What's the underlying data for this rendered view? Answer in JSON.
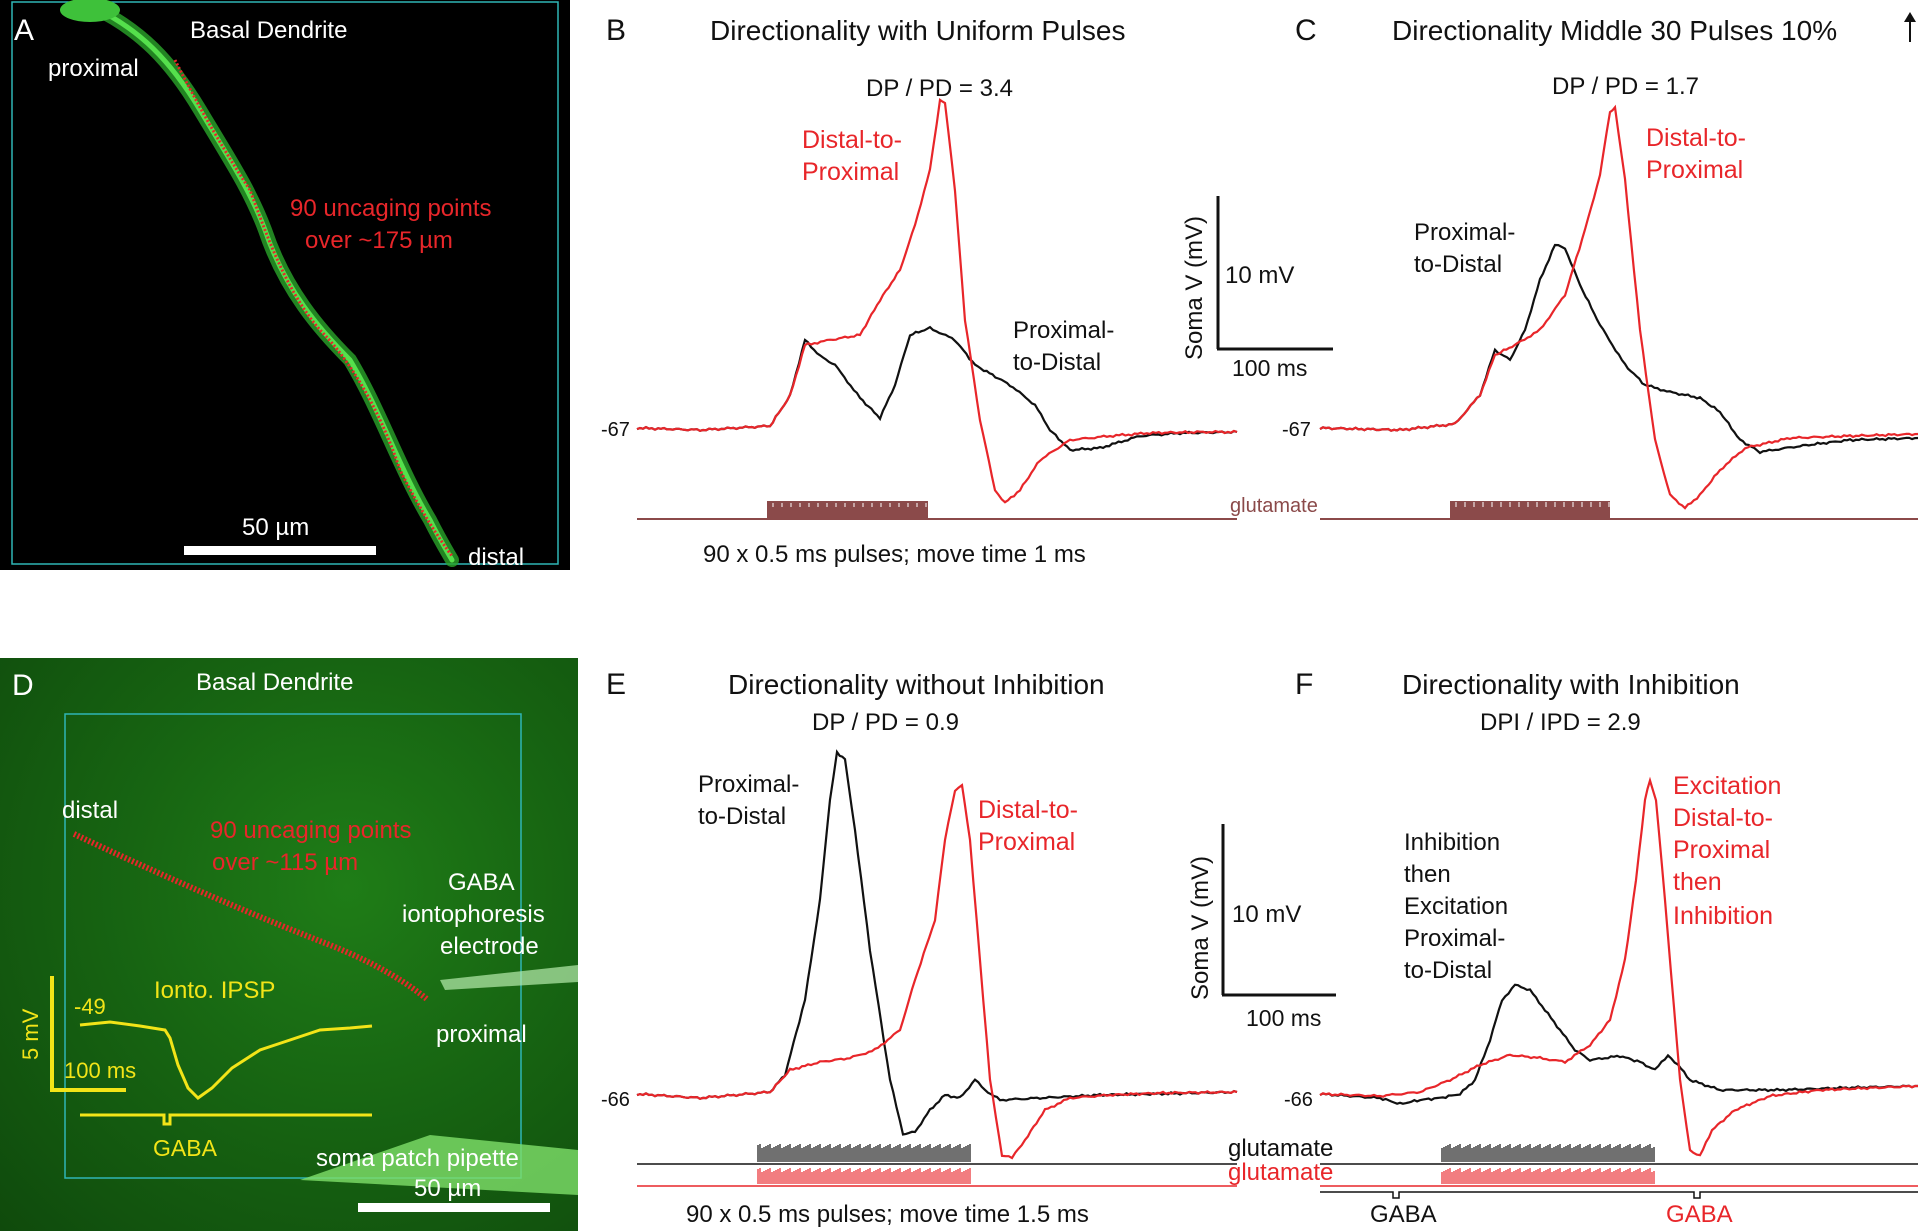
{
  "colors": {
    "red": "#e8262a",
    "black": "#111111",
    "dendrite_green": "#3ec13a",
    "glutamate_brown": "#8b4a4a",
    "yellow": "#f2e418",
    "cyan_box": "#2fb5b5",
    "mic_bg_d": "#176512"
  },
  "panel_a": {
    "letter": "A",
    "title": "Basal Dendrite",
    "proximal": "proximal",
    "distal": "distal",
    "uncaging_line1": "90 uncaging points",
    "uncaging_line2": "over ~175 µm",
    "scalebar": "50 µm"
  },
  "panel_b": {
    "letter": "B",
    "title": "Directionality with Uniform Pulses",
    "ratio": "DP / PD =  3.4",
    "red_label": [
      "Distal-to-",
      "Proximal"
    ],
    "black_label": [
      "Proximal-",
      "to-Distal"
    ],
    "baseline": "-67",
    "footer": "90 x 0.5 ms pulses; move time 1 ms",
    "glutamate": "glutamate"
  },
  "scale_top": {
    "ylabel": "Soma V (mV)",
    "v": "10 mV",
    "t": "100 ms"
  },
  "panel_c": {
    "letter": "C",
    "title": "Directionality Middle 30 Pulses 10%",
    "ratio": "DP / PD = 1.7",
    "red_label": [
      "Distal-to-",
      "Proximal"
    ],
    "black_label": [
      "Proximal-",
      "to-Distal"
    ],
    "baseline": "-67"
  },
  "panel_d": {
    "letter": "D",
    "title": "Basal Dendrite",
    "distal": "distal",
    "proximal": "proximal",
    "uncaging_line1": "90 uncaging points",
    "uncaging_line2": "over ~115 µm",
    "electrode": [
      "GABA",
      "iontophoresis",
      "electrode"
    ],
    "ipsp_label": "Ionto. IPSP",
    "ipsp_baseline": "-49",
    "scale_v": "5 mV",
    "scale_t": "100 ms",
    "gaba": "GABA",
    "pipette": "soma patch pipette",
    "scalebar": "50 µm"
  },
  "panel_e": {
    "letter": "E",
    "title": "Directionality without Inhibition",
    "ratio": "DP / PD = 0.9",
    "black_label": [
      "Proximal-",
      "to-Distal"
    ],
    "red_label": [
      "Distal-to-",
      "Proximal"
    ],
    "baseline": "-66",
    "footer": "90 x 0.5 ms pulses; move time 1.5 ms",
    "glutamate_black": "glutamate",
    "glutamate_red": "glutamate"
  },
  "scale_bottom": {
    "ylabel": "Soma V (mV)",
    "v": "10 mV",
    "t": "100 ms"
  },
  "panel_f": {
    "letter": "F",
    "title": "Directionality with Inhibition",
    "ratio": "DPI / IPD = 2.9",
    "black_label": [
      "Inhibition",
      "then",
      "Excitation",
      "Proximal-",
      "to-Distal"
    ],
    "red_label": [
      "Excitation",
      "Distal-to-",
      "Proximal",
      "then",
      "Inhibition"
    ],
    "baseline": "-66",
    "gaba_left": "GABA",
    "gaba_right": "GABA"
  }
}
